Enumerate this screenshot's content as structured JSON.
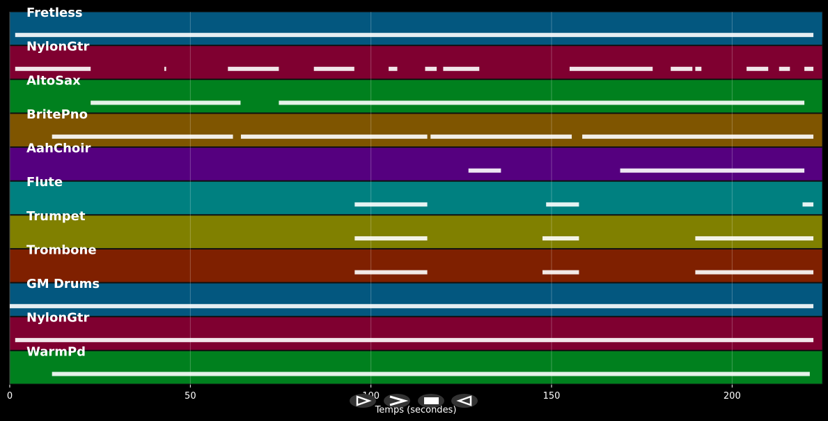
{
  "chart_data": {
    "type": "pianoroll",
    "x_label": "Temps (secondes)",
    "xlim": [
      0,
      225
    ],
    "xticks": [
      0,
      50,
      100,
      150,
      200
    ],
    "grid": true,
    "tracks": [
      {
        "name": "Fretless",
        "color": "#03577f",
        "segments": [
          [
            1.5,
            222.5
          ]
        ]
      },
      {
        "name": "NylonGtr",
        "color": "#7f0030",
        "segments": [
          [
            1.5,
            22.4
          ],
          [
            42.8,
            43.3
          ],
          [
            60.4,
            74.5
          ],
          [
            84.2,
            95.4
          ],
          [
            104.9,
            107.3
          ],
          [
            115,
            118.2
          ],
          [
            120,
            130
          ],
          [
            155,
            178
          ],
          [
            183,
            189
          ],
          [
            189.8,
            191.5
          ],
          [
            204,
            210
          ],
          [
            213,
            216
          ],
          [
            220,
            222.5
          ]
        ]
      },
      {
        "name": "AltoSax",
        "color": "#00801e",
        "segments": [
          [
            22.4,
            63.9
          ],
          [
            74.5,
            220
          ]
        ]
      },
      {
        "name": "BritePno",
        "color": "#7f5500",
        "segments": [
          [
            11.7,
            61.8
          ],
          [
            64,
            115.6
          ],
          [
            116.5,
            155.6
          ],
          [
            158.5,
            222.5
          ]
        ]
      },
      {
        "name": "AahChoir",
        "color": "#55007f",
        "segments": [
          [
            127,
            136
          ],
          [
            169,
            220
          ]
        ]
      },
      {
        "name": "Flute",
        "color": "#008080",
        "segments": [
          [
            95.5,
            115.6
          ],
          [
            148.5,
            157.6
          ],
          [
            219.5,
            222.5
          ]
        ]
      },
      {
        "name": "Trumpet",
        "color": "#808000",
        "segments": [
          [
            95.5,
            115.6
          ],
          [
            147.5,
            157.6
          ],
          [
            189.8,
            222.5
          ]
        ]
      },
      {
        "name": "Trombone",
        "color": "#7f2000",
        "segments": [
          [
            95.5,
            115.6
          ],
          [
            147.5,
            157.6
          ],
          [
            189.8,
            222.5
          ]
        ]
      },
      {
        "name": "GM Drums",
        "color": "#03577f",
        "segments": [
          [
            0,
            222.5
          ]
        ]
      },
      {
        "name": "NylonGtr",
        "color": "#7f0030",
        "segments": [
          [
            1.5,
            222.5
          ]
        ]
      },
      {
        "name": "WarmPd",
        "color": "#00801e",
        "segments": [
          [
            11.7,
            221.5
          ]
        ]
      }
    ]
  }
}
